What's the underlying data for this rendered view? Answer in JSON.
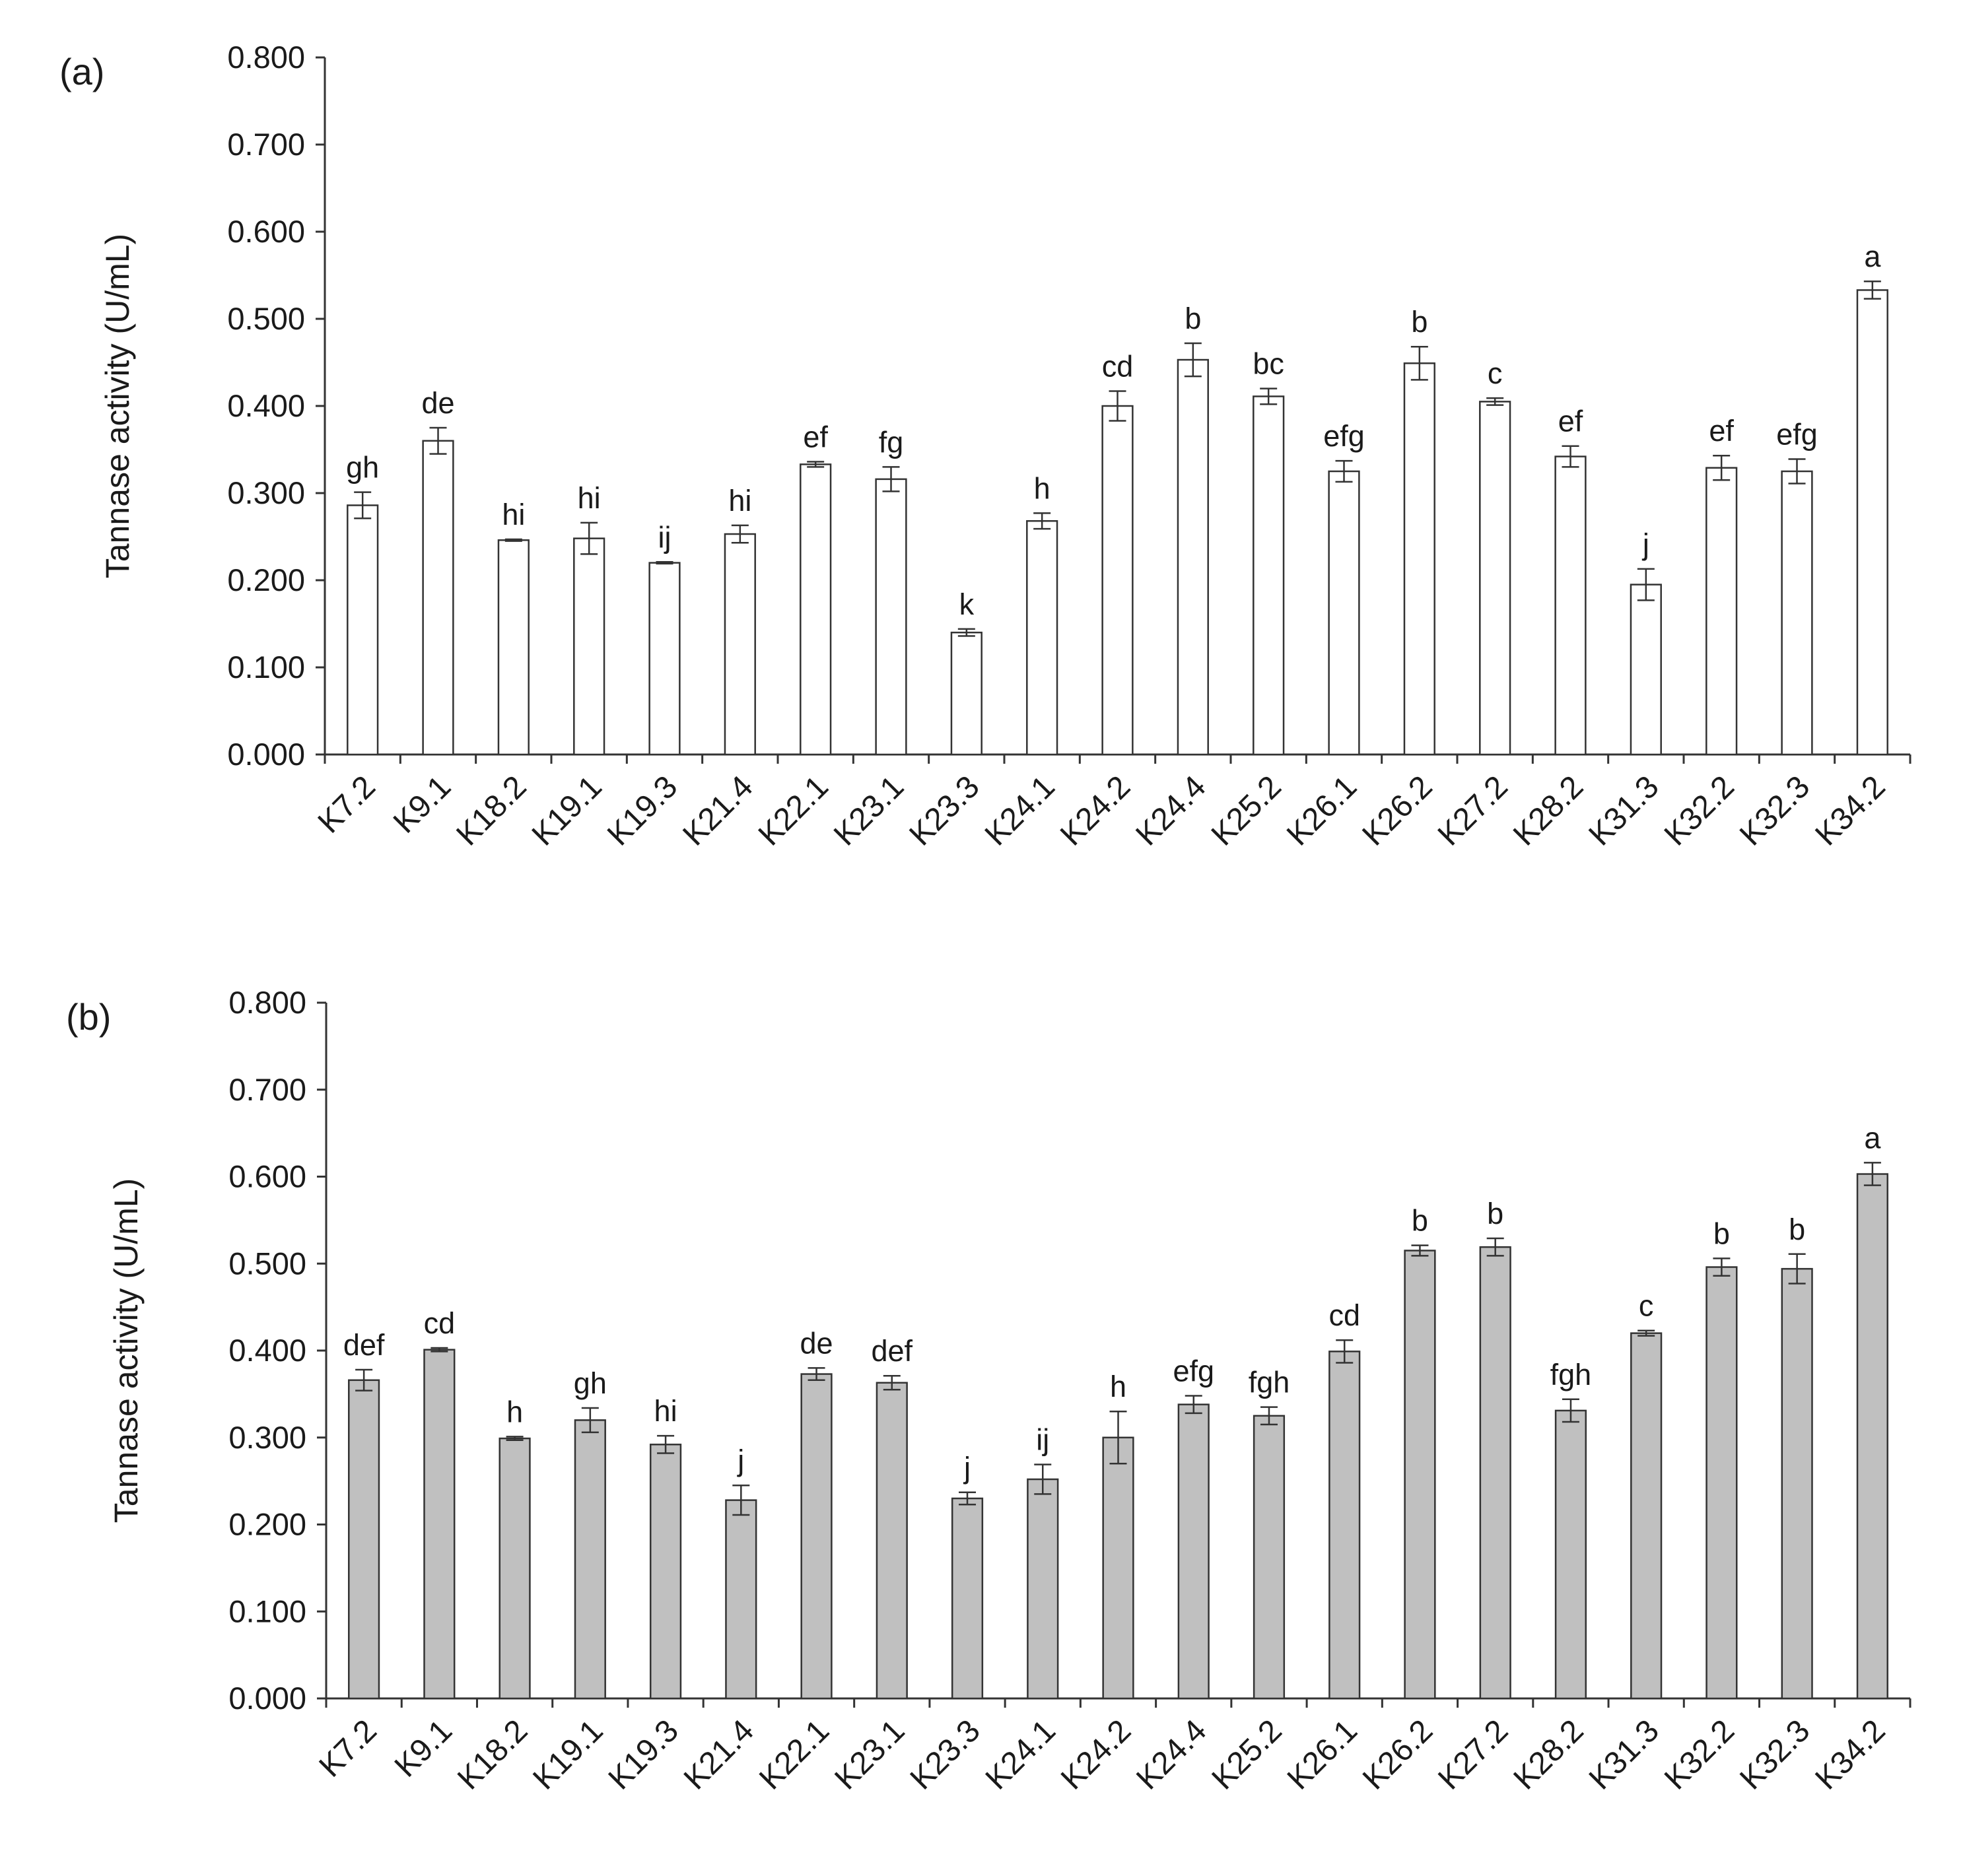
{
  "chart_data": [
    {
      "type": "bar",
      "panel_label": "(a)",
      "ylabel": "Tannase activity (U/mL)",
      "ylim": [
        0,
        0.8
      ],
      "yticks": [
        "0.000",
        "0.100",
        "0.200",
        "0.300",
        "0.400",
        "0.500",
        "0.600",
        "0.700",
        "0.800"
      ],
      "categories": [
        "K7.2",
        "K9.1",
        "K18.2",
        "K19.1",
        "K19.3",
        "K21.4",
        "K22.1",
        "K23.1",
        "K23.3",
        "K24.1",
        "K24.2",
        "K24.4",
        "K25.2",
        "K26.1",
        "K26.2",
        "K27.2",
        "K28.2",
        "K31.3",
        "K32.2",
        "K32.3",
        "K34.2"
      ],
      "values": [
        0.286,
        0.36,
        0.246,
        0.248,
        0.22,
        0.253,
        0.333,
        0.316,
        0.14,
        0.268,
        0.4,
        0.453,
        0.411,
        0.325,
        0.449,
        0.405,
        0.342,
        0.195,
        0.329,
        0.325,
        0.533
      ],
      "errors": [
        0.015,
        0.015,
        0.001,
        0.018,
        0.001,
        0.01,
        0.003,
        0.014,
        0.004,
        0.009,
        0.017,
        0.019,
        0.009,
        0.012,
        0.019,
        0.004,
        0.012,
        0.018,
        0.014,
        0.014,
        0.01
      ],
      "annotations": [
        "gh",
        "de",
        "hi",
        "hi",
        "ij",
        "hi",
        "ef",
        "fg",
        "k",
        "h",
        "cd",
        "b",
        "bc",
        "efg",
        "b",
        "c",
        "ef",
        "j",
        "ef",
        "efg",
        "a"
      ],
      "bar_color": "#ffffff"
    },
    {
      "type": "bar",
      "panel_label": "(b)",
      "ylabel": "Tannase activity (U/mL)",
      "ylim": [
        0,
        0.8
      ],
      "yticks": [
        "0.000",
        "0.100",
        "0.200",
        "0.300",
        "0.400",
        "0.500",
        "0.600",
        "0.700",
        "0.800"
      ],
      "categories": [
        "K7.2",
        "K9.1",
        "K18.2",
        "K19.1",
        "K19.3",
        "K21.4",
        "K22.1",
        "K23.1",
        "K23.3",
        "K24.1",
        "K24.2",
        "K24.4",
        "K25.2",
        "K26.1",
        "K26.2",
        "K27.2",
        "K28.2",
        "K31.3",
        "K32.2",
        "K32.3",
        "K34.2"
      ],
      "values": [
        0.366,
        0.401,
        0.299,
        0.32,
        0.292,
        0.228,
        0.373,
        0.363,
        0.23,
        0.252,
        0.3,
        0.338,
        0.325,
        0.399,
        0.515,
        0.519,
        0.331,
        0.42,
        0.496,
        0.494,
        0.603
      ],
      "errors": [
        0.012,
        0.002,
        0.002,
        0.014,
        0.01,
        0.017,
        0.007,
        0.008,
        0.007,
        0.017,
        0.03,
        0.01,
        0.01,
        0.013,
        0.006,
        0.01,
        0.013,
        0.003,
        0.01,
        0.017,
        0.013
      ],
      "annotations": [
        "def",
        "cd",
        "h",
        "gh",
        "hi",
        "j",
        "de",
        "def",
        "j",
        "ij",
        "h",
        "efg",
        "fgh",
        "cd",
        "b",
        "b",
        "fgh",
        "c",
        "b",
        "b",
        "a"
      ],
      "bar_color": "#c0c0c0"
    }
  ]
}
